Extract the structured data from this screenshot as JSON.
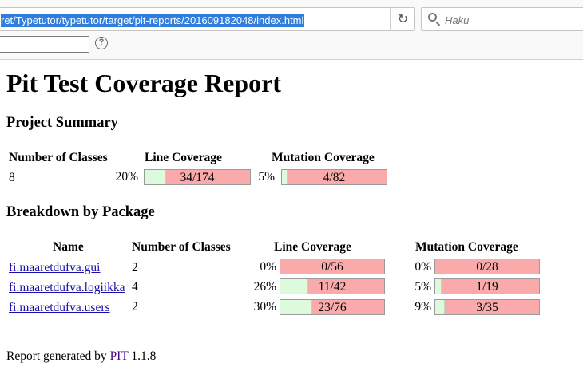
{
  "browser": {
    "url": "ret/Typetutor/typetutor/target/pit-reports/201609182048/index.html",
    "reload_icon": "reload-icon",
    "search_placeholder": "Haku",
    "find_value": ""
  },
  "report": {
    "title": "Pit Test Coverage Report",
    "project_summary": {
      "heading": "Project Summary",
      "headers": {
        "classes": "Number of Classes",
        "line": "Line Coverage",
        "mutation": "Mutation Coverage"
      },
      "classes": "8",
      "line": {
        "percent": "20%",
        "label": "34/174",
        "covered": 34,
        "total": 174
      },
      "mutation": {
        "percent": "5%",
        "label": "4/82",
        "covered": 4,
        "total": 82
      }
    },
    "breakdown": {
      "heading": "Breakdown by Package",
      "headers": {
        "name": "Name",
        "classes": "Number of Classes",
        "line": "Line Coverage",
        "mutation": "Mutation Coverage"
      },
      "rows": [
        {
          "name": "fi.maaretdufva.gui",
          "classes": "2",
          "line": {
            "percent": "0%",
            "label": "0/56",
            "covered": 0,
            "total": 56
          },
          "mutation": {
            "percent": "0%",
            "label": "0/28",
            "covered": 0,
            "total": 28
          }
        },
        {
          "name": "fi.maaretdufva.logiikka",
          "classes": "4",
          "line": {
            "percent": "26%",
            "label": "11/42",
            "covered": 11,
            "total": 42
          },
          "mutation": {
            "percent": "5%",
            "label": "1/19",
            "covered": 1,
            "total": 19
          }
        },
        {
          "name": "fi.maaretdufva.users",
          "classes": "2",
          "line": {
            "percent": "30%",
            "label": "23/76",
            "covered": 23,
            "total": 76
          },
          "mutation": {
            "percent": "9%",
            "label": "3/35",
            "covered": 3,
            "total": 35
          }
        }
      ]
    },
    "footer": {
      "prefix": "Report generated by",
      "link": "PIT",
      "version": "1.1.8"
    }
  }
}
